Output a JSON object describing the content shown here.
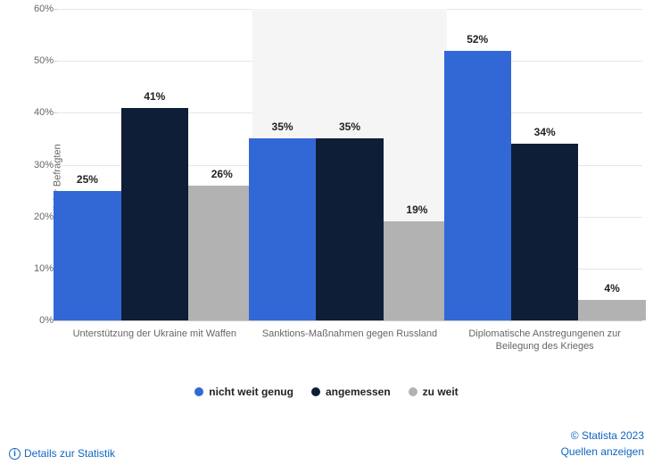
{
  "chart": {
    "type": "bar",
    "y_axis_title": "Anteil der Befragten",
    "ylim": [
      0,
      60
    ],
    "ytick_step": 10,
    "y_unit": "%",
    "background_color": "#ffffff",
    "alt_group_bg": "#f5f5f5",
    "grid_color": "#e6e6e6",
    "categories": [
      "Unterstützung der Ukraine mit Waffen",
      "Sanktions-Maßnahmen gegen Russland",
      "Diplomatische Anstregungenen zur Beilegung des Krieges"
    ],
    "series": [
      {
        "name": "nicht weit genug",
        "color": "#3267d6",
        "values": [
          25,
          35,
          52
        ]
      },
      {
        "name": "angemessen",
        "color": "#0f1e37",
        "values": [
          41,
          35,
          34
        ]
      },
      {
        "name": "zu weit",
        "color": "#b2b2b2",
        "values": [
          26,
          19,
          4
        ]
      }
    ],
    "label_fontsize": 11,
    "bar_label_fontsize": 12
  },
  "footer": {
    "details_label": "Details zur Statistik",
    "copyright": "© Statista 2023",
    "sources_label": "Quellen anzeigen"
  }
}
